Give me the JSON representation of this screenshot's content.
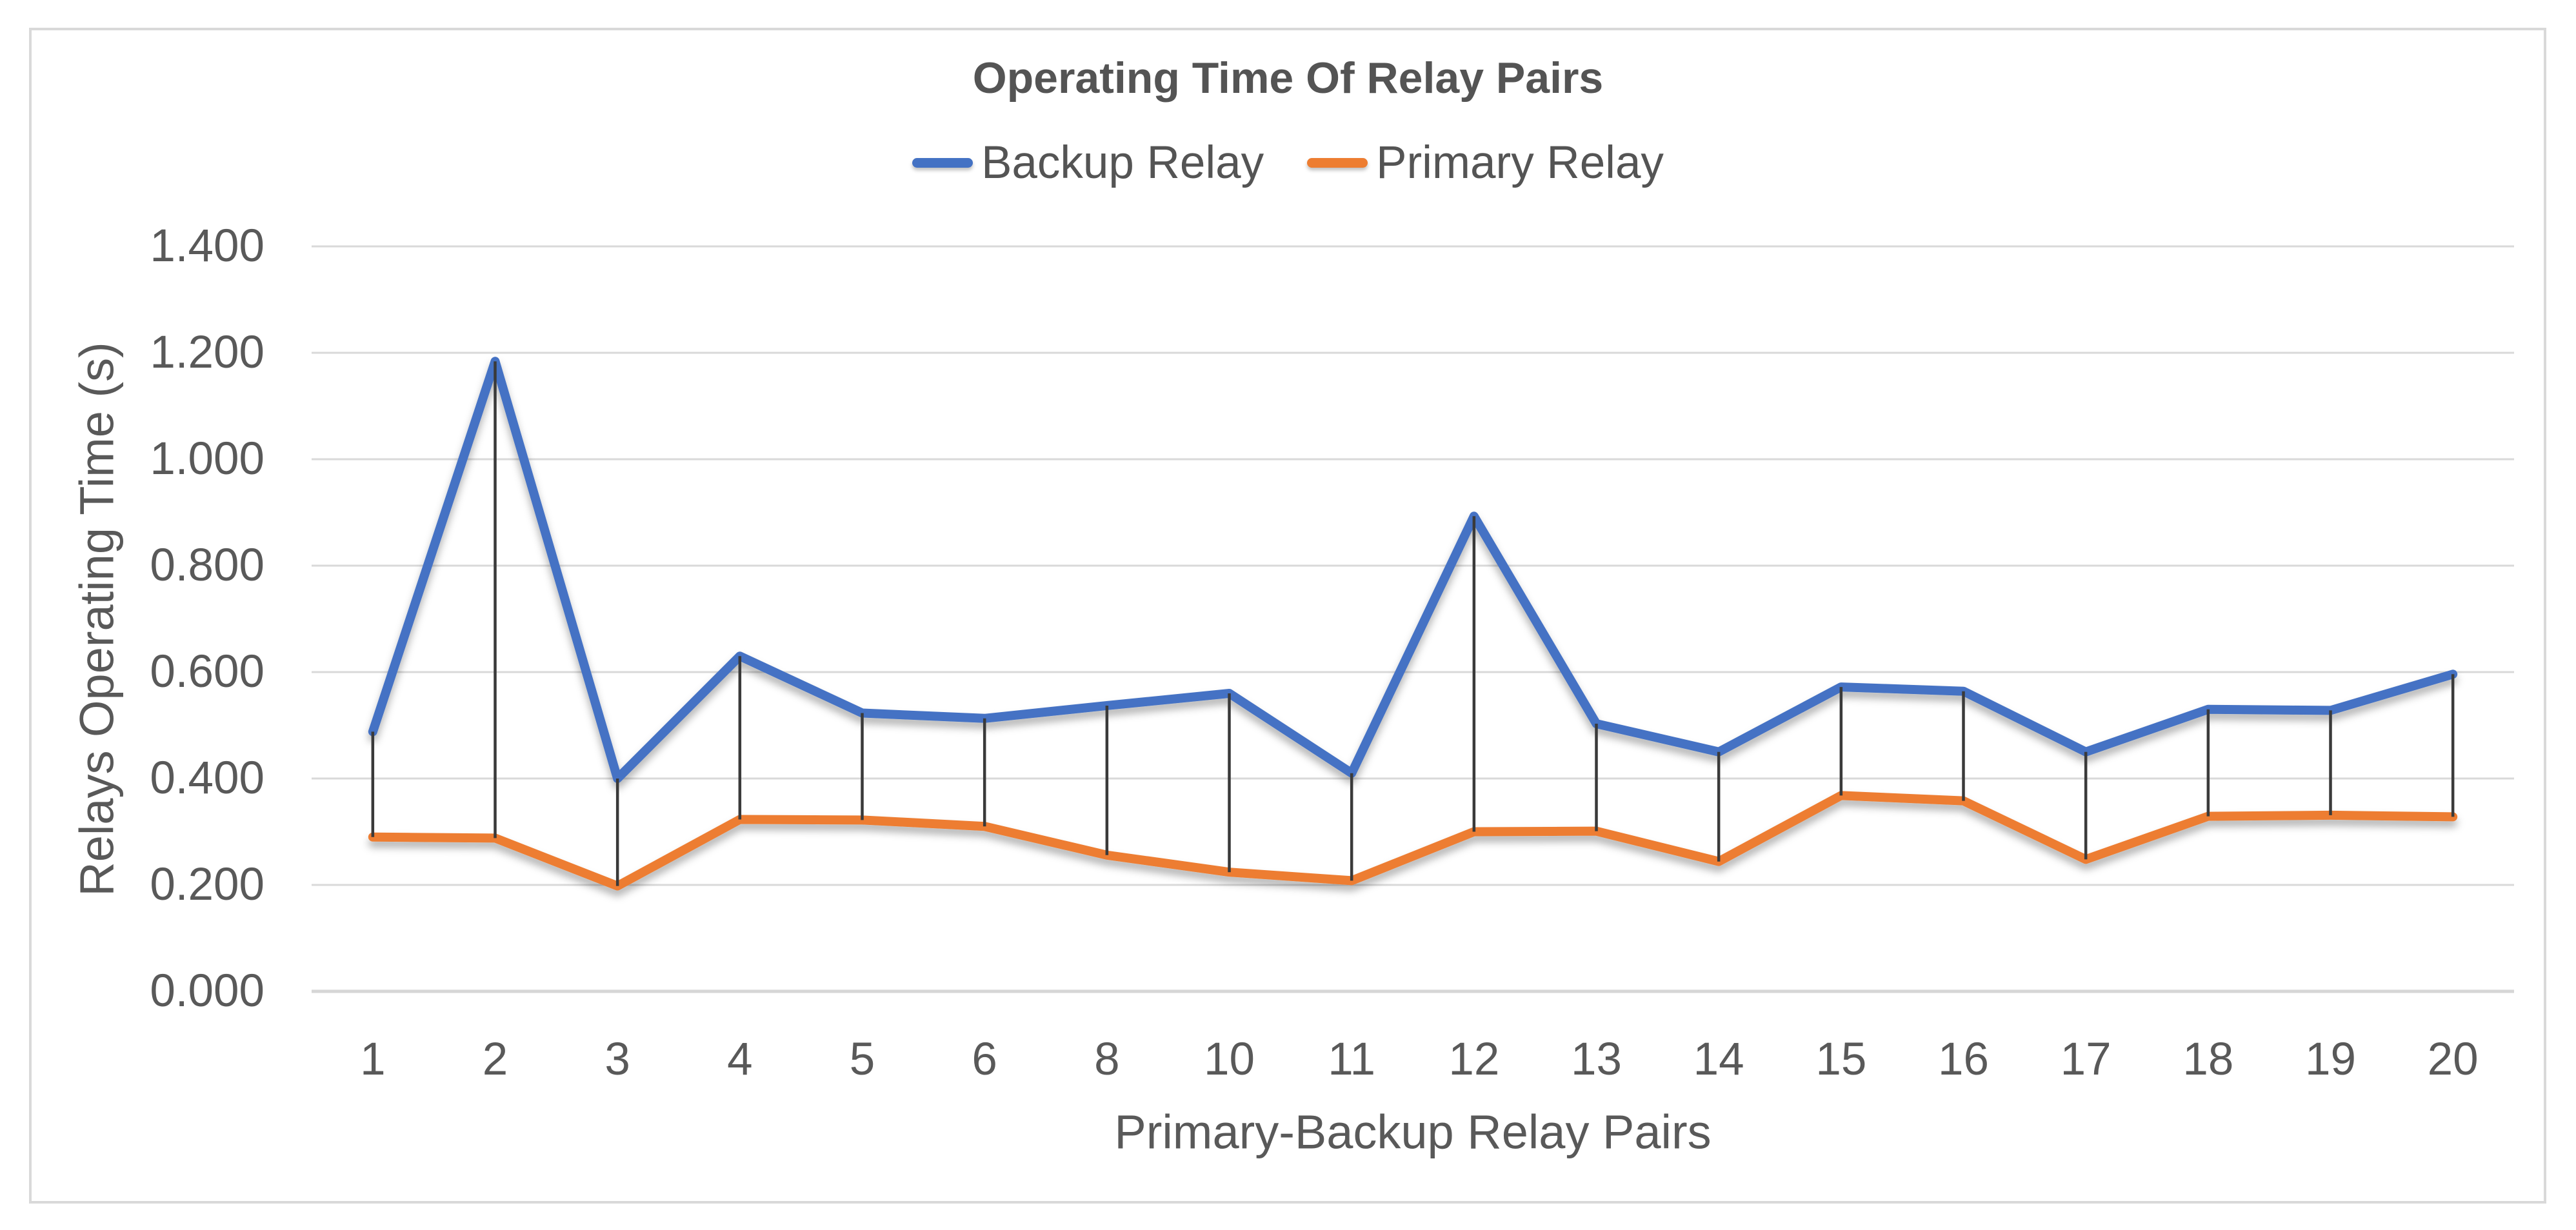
{
  "chart_data": {
    "type": "line",
    "title": "Operating Time Of Relay Pairs",
    "xlabel": "Primary-Backup Relay Pairs",
    "ylabel": "Relays Operating Time (s)",
    "categories": [
      "1",
      "2",
      "3",
      "4",
      "5",
      "6",
      "8",
      "10",
      "11",
      "12",
      "13",
      "14",
      "15",
      "16",
      "17",
      "18",
      "19",
      "20"
    ],
    "series": [
      {
        "name": "Backup Relay",
        "color": "#4472C4",
        "values": [
          0.488,
          1.184,
          0.4,
          0.63,
          0.523,
          0.513,
          0.537,
          0.56,
          0.41,
          0.893,
          0.503,
          0.45,
          0.572,
          0.564,
          0.45,
          0.53,
          0.528,
          0.596
        ]
      },
      {
        "name": "Primary Relay",
        "color": "#ED7D31",
        "values": [
          0.29,
          0.288,
          0.198,
          0.323,
          0.322,
          0.31,
          0.256,
          0.224,
          0.208,
          0.3,
          0.301,
          0.244,
          0.368,
          0.358,
          0.248,
          0.329,
          0.331,
          0.328
        ]
      }
    ],
    "ylim": [
      0,
      1.4
    ],
    "ytick_step": 0.2,
    "ytick_labels": [
      "0.000",
      "0.200",
      "0.400",
      "0.600",
      "0.800",
      "1.000",
      "1.200",
      "1.400"
    ],
    "grid": true,
    "legend_position": "top",
    "high_low_lines": true
  },
  "colors": {
    "background": "#FFFFFF",
    "border": "#D9D9D9",
    "grid": "#D9D9D9",
    "axis_line": "#D6D6D6",
    "tick_text": "#595959",
    "title_text": "#545454",
    "high_low": "#3A3A3A"
  }
}
